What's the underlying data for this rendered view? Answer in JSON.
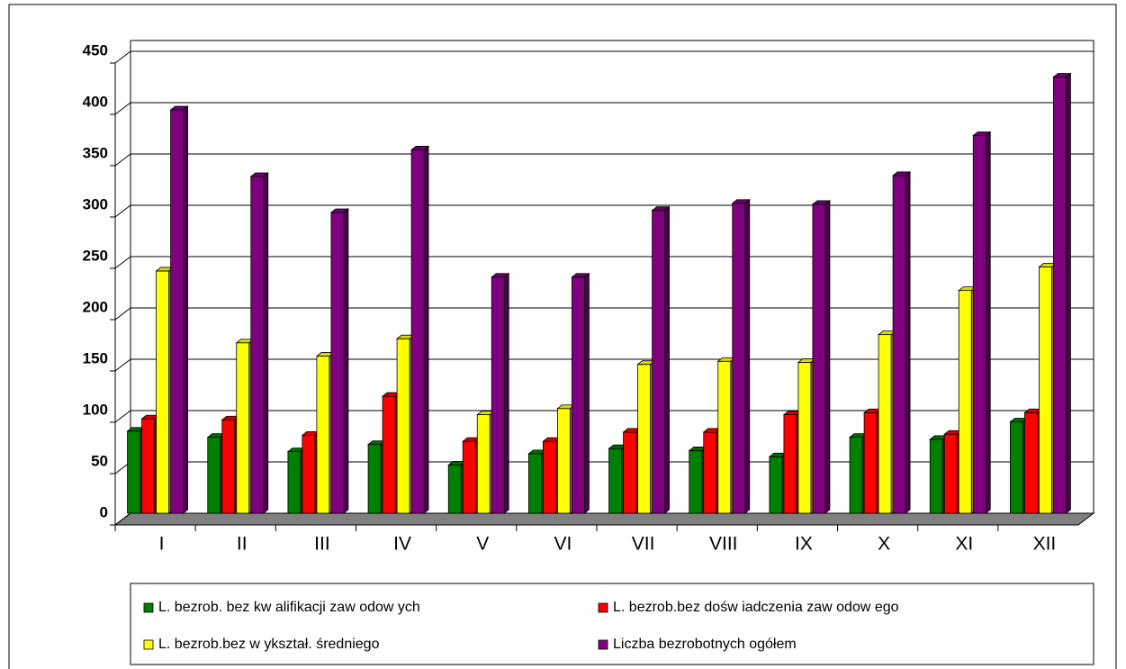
{
  "chart_data": {
    "type": "bar",
    "categories": [
      "I",
      "II",
      "III",
      "IV",
      "V",
      "VI",
      "VII",
      "VIII",
      "IX",
      "X",
      "XI",
      "XII"
    ],
    "series": [
      {
        "name": "L. bezrob. bez kw alifikacji zaw odow ych",
        "color": "#008000",
        "values": [
          80,
          74,
          60,
          67,
          47,
          58,
          63,
          61,
          55,
          74,
          72,
          89
        ]
      },
      {
        "name": "L. bezrob.bez dośw iadczenia zaw odow ego",
        "color": "#ff0000",
        "values": [
          92,
          91,
          76,
          114,
          70,
          70,
          79,
          79,
          96,
          98,
          77,
          98
        ]
      },
      {
        "name": "L. bezrob.bez w ykształ. średniego",
        "color": "#ffff00",
        "values": [
          236,
          166,
          153,
          170,
          96,
          102,
          145,
          148,
          147,
          174,
          217,
          240
        ]
      },
      {
        "name": "Liczba bezrobotnych ogółem",
        "color": "#800080",
        "values": [
          393,
          328,
          293,
          354,
          230,
          230,
          295,
          302,
          301,
          329,
          368,
          425
        ]
      }
    ],
    "ylim": [
      0,
      450
    ],
    "yticks": [
      0,
      50,
      100,
      150,
      200,
      250,
      300,
      350,
      400,
      450
    ],
    "grid": true
  }
}
